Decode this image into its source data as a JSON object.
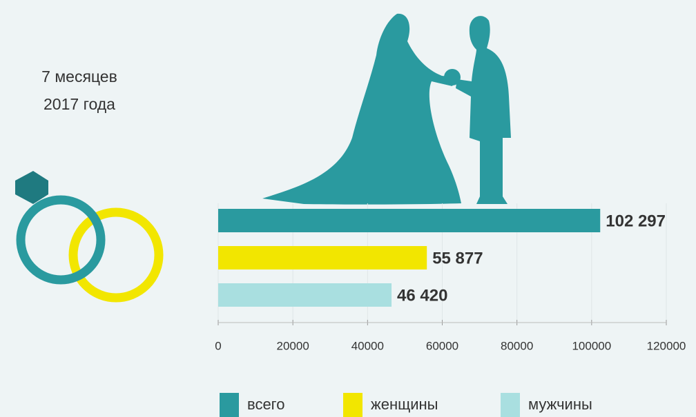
{
  "chart_data": {
    "type": "bar",
    "orientation": "horizontal",
    "annotation": [
      "7 месяцев",
      "2017 года"
    ],
    "categories": [
      null
    ],
    "series": [
      {
        "name": "всего",
        "color": "#2a9a9f",
        "values": [
          102297
        ],
        "value_labels": [
          "102 297"
        ]
      },
      {
        "name": "женщины",
        "color": "#f2e600",
        "values": [
          55877
        ],
        "value_labels": [
          "55 877"
        ]
      },
      {
        "name": "мужчины",
        "color": "#a9dfe0",
        "values": [
          46420
        ],
        "value_labels": [
          "46 420"
        ]
      }
    ],
    "xlim": [
      0,
      120000
    ],
    "xticks": [
      0,
      20000,
      40000,
      60000,
      80000,
      100000,
      120000
    ],
    "grid": true,
    "legend": "bottom"
  }
}
